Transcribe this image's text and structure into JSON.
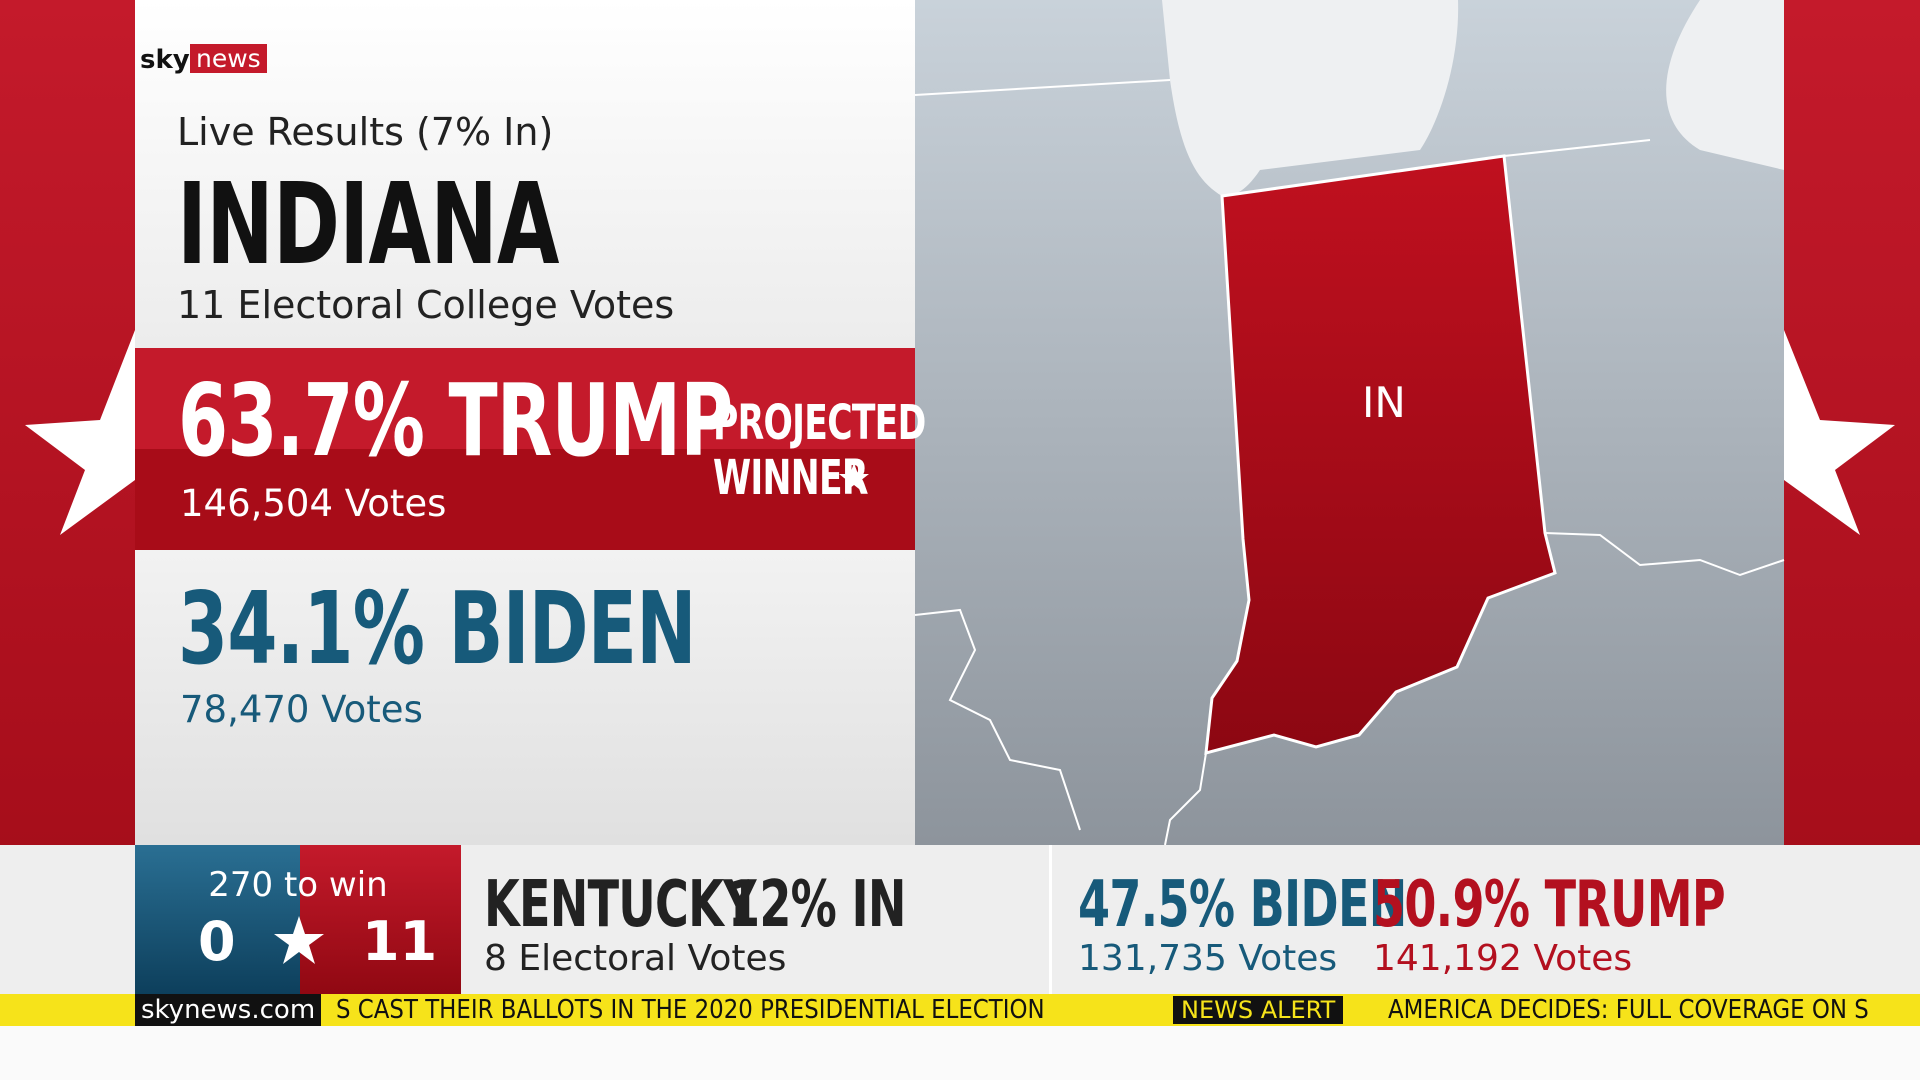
{
  "brand": {
    "sky": "sky",
    "news": "news"
  },
  "header": {
    "status": "Live Results (7% In)",
    "state": "INDIANA",
    "electoral_votes": "11 Electoral College Votes"
  },
  "leader": {
    "result": "63.7% TRUMP",
    "votes": "146,504 Votes",
    "projected": "PROJECTED",
    "winner": "WINNER"
  },
  "trailer": {
    "result": "34.1% BIDEN",
    "votes": "78,470 Votes"
  },
  "map": {
    "label": "IN"
  },
  "tally": {
    "target": "270 to win",
    "left": "0",
    "right": "11"
  },
  "other_state": {
    "state": "KENTUCKY",
    "reported": "12% IN",
    "electoral_votes": "8 Electoral Votes",
    "candidates": [
      {
        "result": "47.5% BIDEN",
        "votes": "131,735 Votes"
      },
      {
        "result": "50.9% TRUMP",
        "votes": "141,192 Votes"
      }
    ]
  },
  "ticker": {
    "site": "skynews.com",
    "headline": "S CAST THEIR BALLOTS IN THE 2020 PRESIDENTIAL ELECTION",
    "alert": "NEWS ALERT",
    "next": "AMERICA DECIDES: FULL COVERAGE ON S"
  }
}
